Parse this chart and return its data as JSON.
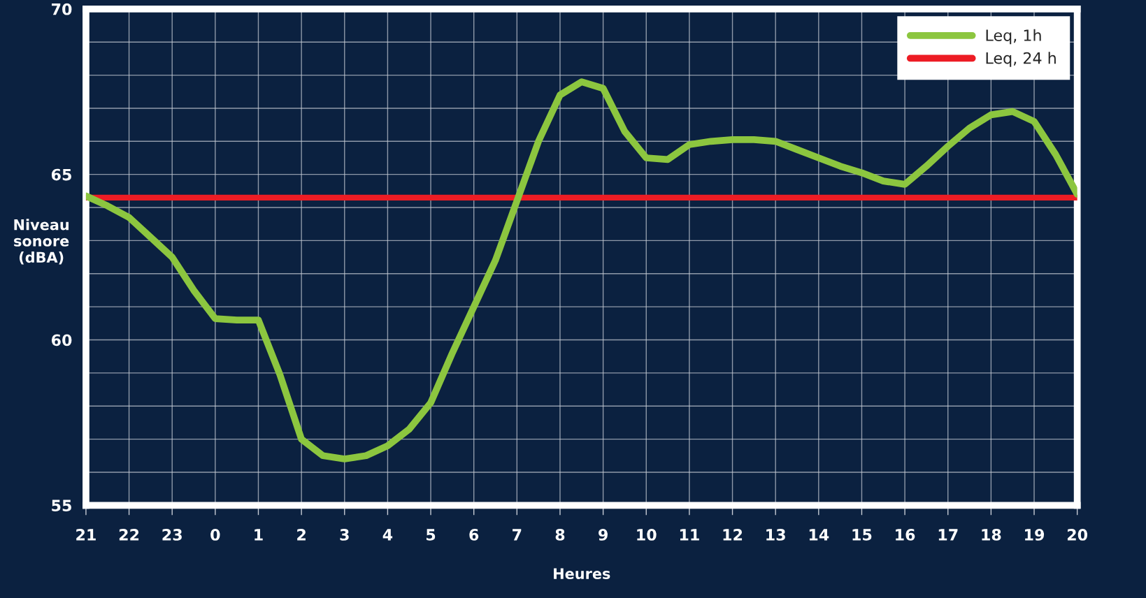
{
  "chart_data": {
    "type": "line",
    "xlabel": "Heures",
    "ylabel": "Niveau\nsonore\n(dBA)",
    "categories": [
      "21",
      null,
      "22",
      null,
      "23",
      null,
      "0",
      null,
      "1",
      null,
      "2",
      null,
      "3",
      null,
      "4",
      null,
      "5",
      null,
      "6",
      null,
      "7",
      null,
      "8",
      null,
      "9",
      null,
      "10",
      null,
      "11",
      null,
      "12",
      null,
      "13",
      null,
      "14",
      null,
      "15",
      null,
      "16",
      null,
      "17",
      null,
      "18",
      null,
      "19",
      null,
      "20"
    ],
    "series": [
      {
        "name": "Leq, 1h",
        "color": "#8cc63f",
        "values": [
          64.35,
          64.05,
          63.7,
          63.1,
          62.5,
          61.5,
          60.64,
          60.6,
          60.6,
          58.95,
          57.0,
          56.5,
          56.4,
          56.5,
          56.8,
          57.3,
          58.1,
          59.6,
          61.0,
          62.4,
          64.2,
          66.0,
          67.4,
          67.8,
          67.6,
          66.3,
          65.5,
          65.45,
          65.9,
          66.0,
          66.05,
          66.05,
          66.0,
          65.75,
          65.5,
          65.25,
          65.05,
          64.8,
          64.7,
          65.25,
          65.85,
          66.4,
          66.8,
          66.9,
          66.6,
          65.6,
          64.4
        ]
      }
    ],
    "ref_lines": [
      {
        "axis": "y",
        "value": 64.3,
        "label": "Leq, 24 h",
        "color": "#ed1c24"
      }
    ],
    "ylim": [
      55,
      70
    ],
    "yticks": [
      55,
      {
        "value": 56,
        "label": null
      },
      {
        "value": 57,
        "label": null
      },
      {
        "value": 58,
        "label": null
      },
      {
        "value": 59,
        "label": null
      },
      60,
      {
        "value": 61,
        "label": null
      },
      {
        "value": 62,
        "label": null
      },
      {
        "value": 63,
        "label": null
      },
      {
        "value": 64,
        "label": null
      },
      65,
      {
        "value": 66,
        "label": null
      },
      {
        "value": 67,
        "label": null
      },
      {
        "value": 68,
        "label": null
      },
      {
        "value": 69,
        "label": null
      },
      70
    ],
    "grid": true,
    "legend": "top right",
    "marker": "none",
    "line_style": "solid"
  }
}
